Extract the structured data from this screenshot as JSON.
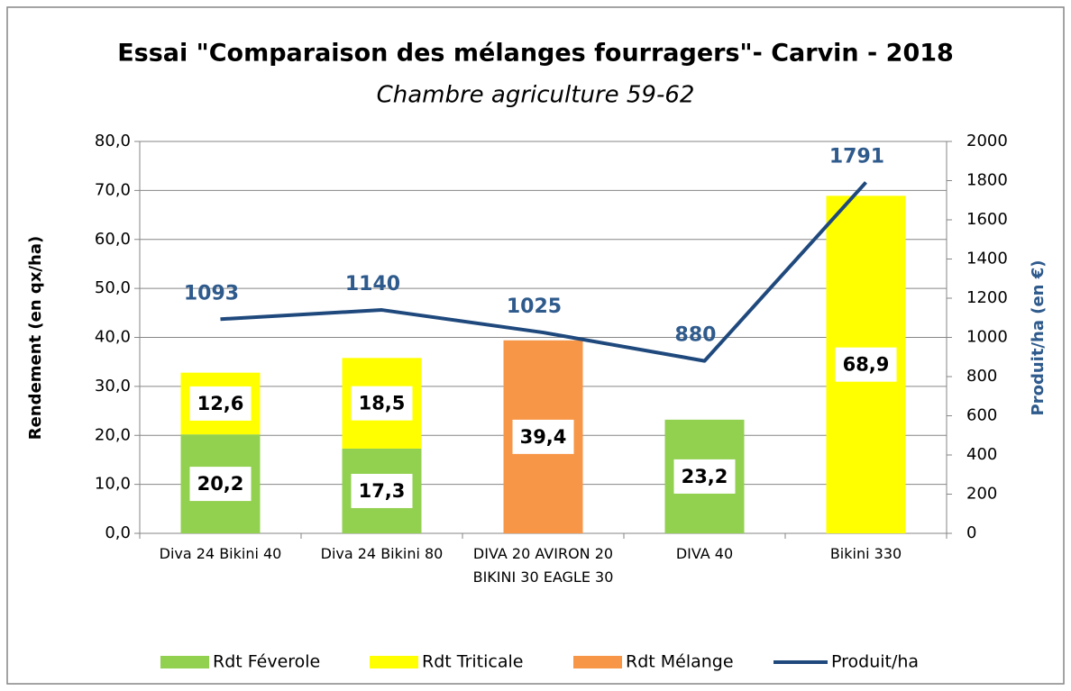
{
  "chart_data": {
    "type": "bar-line",
    "title": "Essai \"Comparaison des mélanges fourragers\"- Carvin - 2018",
    "subtitle": "Chambre agriculture 59-62",
    "y_label": "Rendement (en qx/ha)",
    "y2_label": "Produit/ha (en €)",
    "categories": [
      "Diva 24 Bikini 40",
      "Diva 24 Bikini 80",
      "DIVA 20 AVIRON 20 BIKINI 30 EAGLE 30",
      "DIVA 40",
      "Bikini 330"
    ],
    "series": [
      {
        "name": "Rdt Féverole",
        "type": "bar",
        "color": "#92d050",
        "values": [
          20.2,
          17.3,
          null,
          23.2,
          null
        ],
        "value_labels": [
          "20,2",
          "17,3",
          null,
          "23,2",
          null
        ]
      },
      {
        "name": "Rdt Triticale",
        "type": "bar",
        "color": "#ffff00",
        "values": [
          12.6,
          18.5,
          null,
          null,
          68.9
        ],
        "value_labels": [
          "12,6",
          "18,5",
          null,
          null,
          "68,9"
        ]
      },
      {
        "name": "Rdt Mélange",
        "type": "bar",
        "color": "#f79646",
        "values": [
          null,
          null,
          39.4,
          null,
          null
        ],
        "value_labels": [
          null,
          null,
          "39,4",
          null,
          null
        ]
      },
      {
        "name": "Produit/ha",
        "type": "line",
        "axis": "y2",
        "color": "#1f497d",
        "values": [
          1093,
          1140,
          1025,
          880,
          1791
        ]
      }
    ],
    "ylim": [
      0,
      80
    ],
    "yticks": [
      {
        "value": 0,
        "label": "0,0"
      },
      {
        "value": 10,
        "label": "10,0"
      },
      {
        "value": 20,
        "label": "20,0"
      },
      {
        "value": 30,
        "label": "30,0"
      },
      {
        "value": 40,
        "label": "40,0"
      },
      {
        "value": 50,
        "label": "50,0"
      },
      {
        "value": 60,
        "label": "60,0"
      },
      {
        "value": 70,
        "label": "70,0"
      },
      {
        "value": 80,
        "label": "80,0"
      }
    ],
    "y2lim": [
      0,
      2000
    ],
    "y2ticks": [
      0,
      200,
      400,
      600,
      800,
      1000,
      1200,
      1400,
      1600,
      1800,
      2000
    ],
    "grid": true,
    "legend": "bottom"
  }
}
